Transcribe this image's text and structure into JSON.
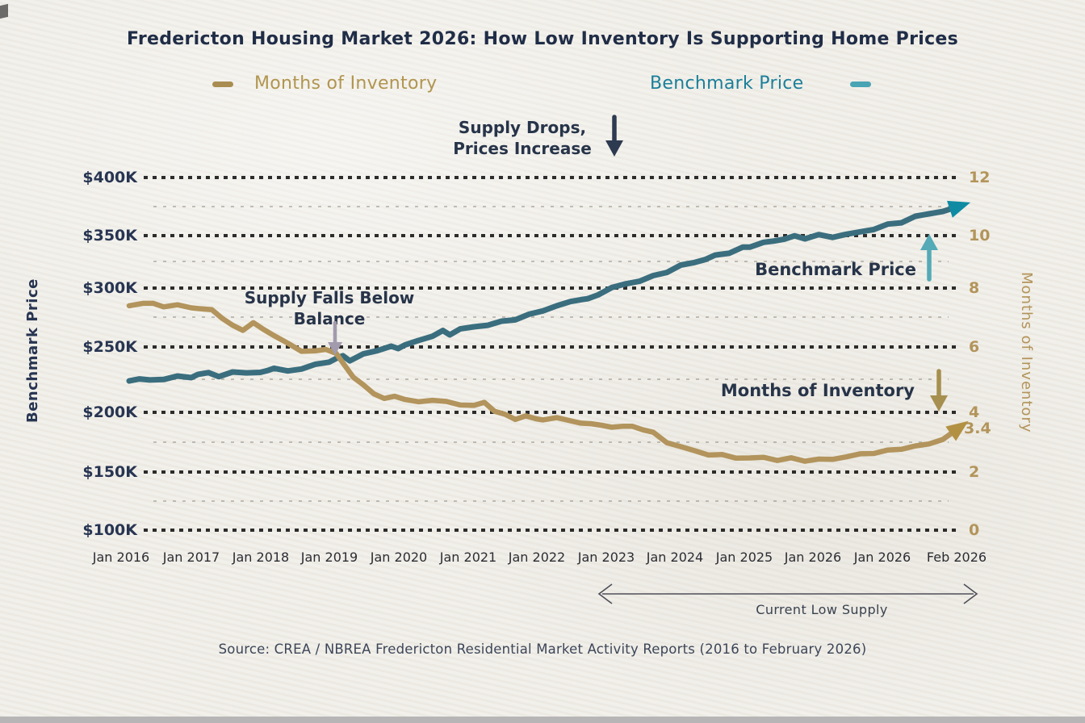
{
  "title": "Fredericton Housing Market 2026: How Low Inventory Is Supporting Home Prices",
  "legend": {
    "inventory_label": "Months of Inventory",
    "price_label": "Benchmark Price",
    "inventory_swatch_color": "#a98d50",
    "price_swatch_color": "#49a4b4",
    "inventory_text_color": "#b1954f",
    "price_text_color": "#1b7f99"
  },
  "axis_titles": {
    "left": "Benchmark Price",
    "right": "Months of Inventory"
  },
  "annotations": {
    "supply_drops_line1": "Supply Drops,",
    "supply_drops_line2": "Prices Increase",
    "supply_falls_line1": "Supply Falls Below",
    "supply_falls_line2": "Balance",
    "benchmark_price": "Benchmark Price",
    "months_of_inventory": "Months of Inventory",
    "current_low_supply": "Current Low Supply"
  },
  "source": "Source: CREA / NBREA Fredericton Residential Market Activity Reports (2016 to February 2026)",
  "chart_data": {
    "type": "line",
    "x_unit": "tick index (0 = Jan 2016, 1 tick per year, 12 = Feb 2026)",
    "x_tick_labels": [
      "Jan 2016",
      "Jan 2017",
      "Jan 2018",
      "Jan 2019",
      "Jan 2020",
      "Jan 2021",
      "Jan 2022",
      "Jan 2023",
      "Jan 2024",
      "Jan 2025",
      "Jan 2026",
      "Jan 2026",
      "Feb 2026"
    ],
    "y_left_labels": [
      "$400K",
      "$350K",
      "$300K",
      "$250K",
      "$200K",
      "$150K",
      "$100K"
    ],
    "y_left_values": [
      400,
      350,
      300,
      250,
      200,
      150,
      100
    ],
    "y_left_unit": "thousand CAD",
    "y_right_labels": [
      "12",
      "10",
      "8",
      "6",
      "4",
      "2",
      "0"
    ],
    "y_right_values": [
      12,
      10,
      8,
      6,
      4,
      2,
      0
    ],
    "y_right_unit": "months",
    "current_inventory_label": "3.4",
    "grid": "dotted horizontal",
    "legend_position": "top",
    "series": [
      {
        "name": "Benchmark Price",
        "axis": "left",
        "color": "#3a6e7e",
        "arrow_color": "#0e8ba3",
        "points": [
          [
            0,
            224
          ],
          [
            0.15,
            226
          ],
          [
            0.3,
            224
          ],
          [
            0.5,
            226
          ],
          [
            0.7,
            227
          ],
          [
            0.9,
            227
          ],
          [
            1,
            229
          ],
          [
            1.15,
            230
          ],
          [
            1.3,
            228
          ],
          [
            1.5,
            230
          ],
          [
            1.7,
            231
          ],
          [
            1.9,
            230
          ],
          [
            2,
            232
          ],
          [
            2.1,
            234
          ],
          [
            2.3,
            231
          ],
          [
            2.5,
            234
          ],
          [
            2.7,
            236
          ],
          [
            2.9,
            239
          ],
          [
            3,
            241
          ],
          [
            3.1,
            243
          ],
          [
            3.2,
            240
          ],
          [
            3.4,
            244
          ],
          [
            3.6,
            248
          ],
          [
            3.8,
            250
          ],
          [
            3.9,
            249
          ],
          [
            4,
            252
          ],
          [
            4.2,
            255
          ],
          [
            4.4,
            260
          ],
          [
            4.55,
            263
          ],
          [
            4.65,
            261
          ],
          [
            4.8,
            265
          ],
          [
            5,
            267
          ],
          [
            5.2,
            269
          ],
          [
            5.4,
            271
          ],
          [
            5.6,
            274
          ],
          [
            5.8,
            277
          ],
          [
            6,
            281
          ],
          [
            6.2,
            285
          ],
          [
            6.4,
            288
          ],
          [
            6.55,
            291
          ],
          [
            6.65,
            290
          ],
          [
            6.8,
            295
          ],
          [
            7,
            300
          ],
          [
            7.2,
            304
          ],
          [
            7.4,
            307
          ],
          [
            7.6,
            311
          ],
          [
            7.8,
            316
          ],
          [
            8,
            321
          ],
          [
            8.2,
            325
          ],
          [
            8.35,
            327
          ],
          [
            8.5,
            331
          ],
          [
            8.7,
            334
          ],
          [
            8.9,
            338
          ],
          [
            9,
            340
          ],
          [
            9.2,
            343
          ],
          [
            9.35,
            345
          ],
          [
            9.5,
            347
          ],
          [
            9.65,
            349
          ],
          [
            9.8,
            348
          ],
          [
            10,
            350
          ],
          [
            10.2,
            349
          ],
          [
            10.4,
            351
          ],
          [
            10.6,
            353
          ],
          [
            10.8,
            356
          ],
          [
            11,
            359
          ],
          [
            11.2,
            362
          ],
          [
            11.4,
            366
          ],
          [
            11.6,
            369
          ],
          [
            11.8,
            371
          ],
          [
            12,
            374
          ]
        ]
      },
      {
        "name": "Months of Inventory",
        "axis": "right",
        "color": "#b2945c",
        "arrow_color": "#b39143",
        "points": [
          [
            0,
            7.4
          ],
          [
            0.2,
            7.5
          ],
          [
            0.35,
            7.45
          ],
          [
            0.5,
            7.4
          ],
          [
            0.7,
            7.4
          ],
          [
            0.9,
            7.35
          ],
          [
            1,
            7.3
          ],
          [
            1.2,
            7.25
          ],
          [
            1.35,
            7.0
          ],
          [
            1.5,
            6.7
          ],
          [
            1.65,
            6.6
          ],
          [
            1.8,
            6.8
          ],
          [
            1.95,
            6.6
          ],
          [
            2.1,
            6.4
          ],
          [
            2.3,
            6.1
          ],
          [
            2.5,
            5.9
          ],
          [
            2.7,
            5.85
          ],
          [
            2.85,
            5.95
          ],
          [
            3,
            5.8
          ],
          [
            3.1,
            5.5
          ],
          [
            3.25,
            5.1
          ],
          [
            3.4,
            4.8
          ],
          [
            3.55,
            4.6
          ],
          [
            3.7,
            4.4
          ],
          [
            3.85,
            4.5
          ],
          [
            4,
            4.4
          ],
          [
            4.2,
            4.3
          ],
          [
            4.4,
            4.4
          ],
          [
            4.6,
            4.3
          ],
          [
            4.8,
            4.25
          ],
          [
            5,
            4.2
          ],
          [
            5.15,
            4.3
          ],
          [
            5.3,
            4.05
          ],
          [
            5.45,
            3.9
          ],
          [
            5.6,
            3.8
          ],
          [
            5.75,
            3.85
          ],
          [
            5.9,
            3.8
          ],
          [
            6,
            3.75
          ],
          [
            6.2,
            3.8
          ],
          [
            6.4,
            3.75
          ],
          [
            6.55,
            3.6
          ],
          [
            6.7,
            3.65
          ],
          [
            6.85,
            3.55
          ],
          [
            7,
            3.5
          ],
          [
            7.15,
            3.55
          ],
          [
            7.3,
            3.5
          ],
          [
            7.45,
            3.45
          ],
          [
            7.6,
            3.3
          ],
          [
            7.8,
            3.0
          ],
          [
            8,
            2.85
          ],
          [
            8.2,
            2.7
          ],
          [
            8.4,
            2.6
          ],
          [
            8.6,
            2.55
          ],
          [
            8.8,
            2.5
          ],
          [
            9,
            2.45
          ],
          [
            9.2,
            2.5
          ],
          [
            9.4,
            2.4
          ],
          [
            9.6,
            2.45
          ],
          [
            9.8,
            2.4
          ],
          [
            10,
            2.4
          ],
          [
            10.2,
            2.45
          ],
          [
            10.4,
            2.5
          ],
          [
            10.6,
            2.6
          ],
          [
            10.8,
            2.65
          ],
          [
            11,
            2.7
          ],
          [
            11.2,
            2.8
          ],
          [
            11.4,
            2.85
          ],
          [
            11.6,
            2.95
          ],
          [
            11.8,
            3.1
          ],
          [
            12,
            3.4
          ]
        ]
      }
    ]
  }
}
